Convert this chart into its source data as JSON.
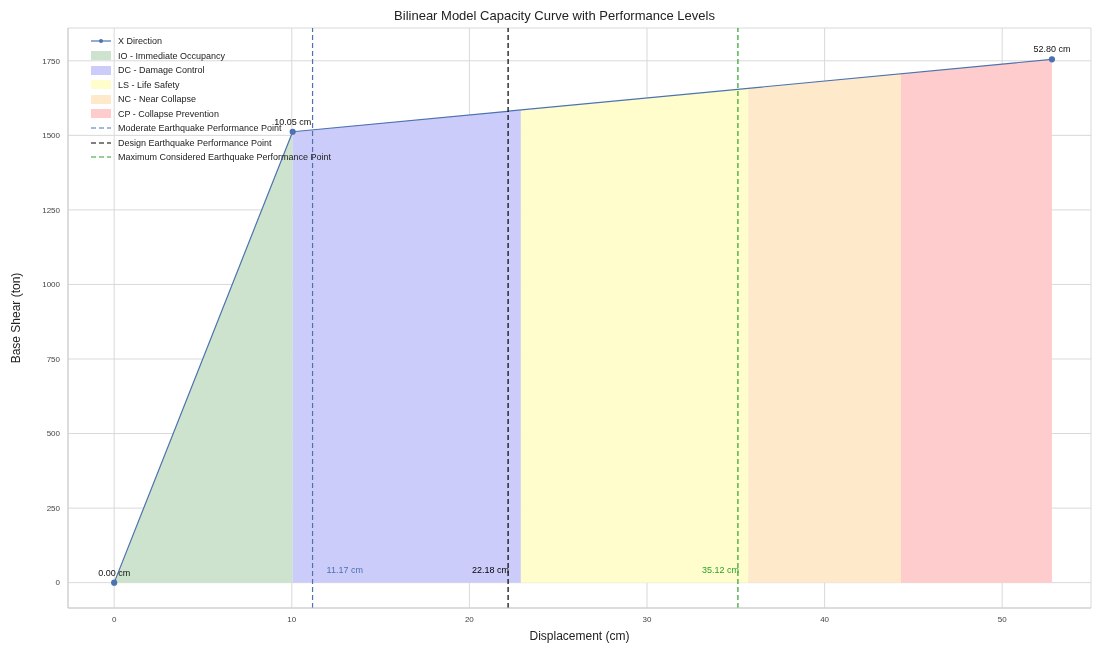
{
  "chart_data": {
    "type": "line",
    "title": "Bilinear Model Capacity Curve with Performance Levels",
    "xlabel": "Displacement (cm)",
    "ylabel": "Base Shear (ton)",
    "series": [
      {
        "name": "X Direction",
        "color": "#4c72b0",
        "marker": "circle",
        "x": [
          0,
          10.05,
          52.8
        ],
        "values": [
          0,
          1512,
          1755
        ]
      },
      {
        "type": "area",
        "name": "IO - Immediate Occupancy",
        "color": "#cde3cd",
        "x": [
          0,
          10.05
        ],
        "values": [
          0,
          1512
        ]
      },
      {
        "type": "area",
        "name": "DC - Damage Control",
        "color": "#ccccfb",
        "x": [
          10.05,
          22.9
        ],
        "values": [
          1512,
          1585
        ]
      },
      {
        "type": "area",
        "name": "LS - Life Safety",
        "color": "#fefdcb",
        "x": [
          22.9,
          35.7
        ],
        "values": [
          1585,
          1658
        ]
      },
      {
        "type": "area",
        "name": "NC - Near Collapse",
        "color": "#feeacb",
        "x": [
          35.7,
          44.3
        ],
        "values": [
          1658,
          1707
        ]
      },
      {
        "type": "area",
        "name": "CP - Collapse Prevention",
        "color": "#fecccc",
        "x": [
          44.3,
          52.8
        ],
        "values": [
          1707,
          1755
        ]
      },
      {
        "name": "Moderate Earthquake Performance Point",
        "color": "#4c72b0",
        "line_style": "dashed",
        "x": [
          11.17,
          11.17
        ],
        "values": [
          -85,
          1860
        ]
      },
      {
        "name": "Design Earthquake Performance Point",
        "color": "#000000",
        "line_style": "dashed",
        "x": [
          22.18,
          22.18
        ],
        "values": [
          -85,
          1860
        ]
      },
      {
        "name": "Maximum Considered Earthquake Performance Point",
        "color": "#2ca02c",
        "line_style": "dashed",
        "x": [
          35.12,
          35.12
        ],
        "values": [
          -85,
          1860
        ]
      }
    ],
    "annotations": [
      {
        "text": "0.00 cm",
        "x": 0,
        "y": 0
      },
      {
        "text": "10.05 cm",
        "x": 10.05,
        "y": 1512
      },
      {
        "text": "52.80 cm",
        "x": 52.8,
        "y": 1755
      },
      {
        "text": "11.17 cm",
        "x": 11.17,
        "y": 0
      },
      {
        "text": "22.18 cm",
        "x": 22.18,
        "y": 0
      },
      {
        "text": "35.12 cm",
        "x": 35.12,
        "y": 0
      }
    ],
    "xlim": [
      -2.6,
      55
    ],
    "ylim": [
      -85,
      1860
    ],
    "xticks": [
      0,
      10,
      20,
      30,
      40,
      50
    ],
    "yticks": [
      0,
      250,
      500,
      750,
      1000,
      1250,
      1500,
      1750
    ],
    "grid": true,
    "legend": "top left",
    "line_style": "solid"
  }
}
